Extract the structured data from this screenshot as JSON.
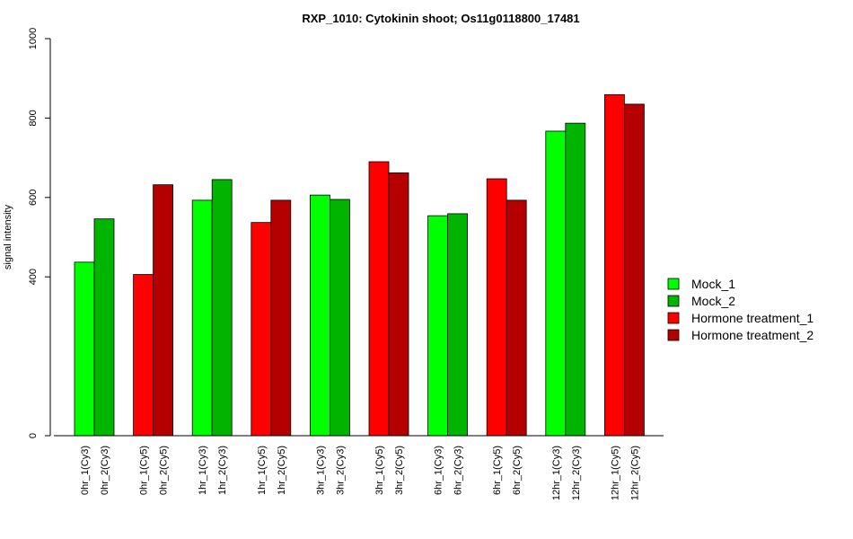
{
  "chart_data": {
    "type": "bar",
    "title": "RXP_1010: Cytokinin shoot; Os11g0118800_17481",
    "xlabel": "",
    "ylabel": "signal intensity",
    "ylim": [
      0,
      1000
    ],
    "yticks": [
      0,
      400,
      600,
      800,
      1000
    ],
    "legend_position": "right",
    "categories": [
      "0hr_1(Cy3)",
      "0hr_2(Cy3)",
      "0hr_1(Cy5)",
      "0hr_2(Cy5)",
      "1hr_1(Cy3)",
      "1hr_2(Cy3)",
      "1hr_1(Cy5)",
      "1hr_2(Cy5)",
      "3hr_1(Cy3)",
      "3hr_2(Cy3)",
      "3hr_1(Cy5)",
      "3hr_2(Cy5)",
      "6hr_1(Cy3)",
      "6hr_2(Cy3)",
      "6hr_1(Cy5)",
      "6hr_2(Cy5)",
      "12hr_1(Cy3)",
      "12hr_2(Cy3)",
      "12hr_1(Cy5)",
      "12hr_2(Cy5)"
    ],
    "values": [
      437,
      546,
      406,
      632,
      593,
      645,
      537,
      593,
      606,
      595,
      690,
      662,
      554,
      559,
      647,
      593,
      767,
      787,
      859,
      835
    ],
    "bar_series": [
      0,
      1,
      2,
      3,
      0,
      1,
      2,
      3,
      0,
      1,
      2,
      3,
      0,
      1,
      2,
      3,
      0,
      1,
      2,
      3
    ],
    "series": [
      {
        "name": "Mock_1",
        "color": "#00ff00"
      },
      {
        "name": "Mock_2",
        "color": "#00b400"
      },
      {
        "name": "Hormone treatment_1",
        "color": "#ff0000"
      },
      {
        "name": "Hormone treatment_2",
        "color": "#b40000"
      }
    ]
  }
}
